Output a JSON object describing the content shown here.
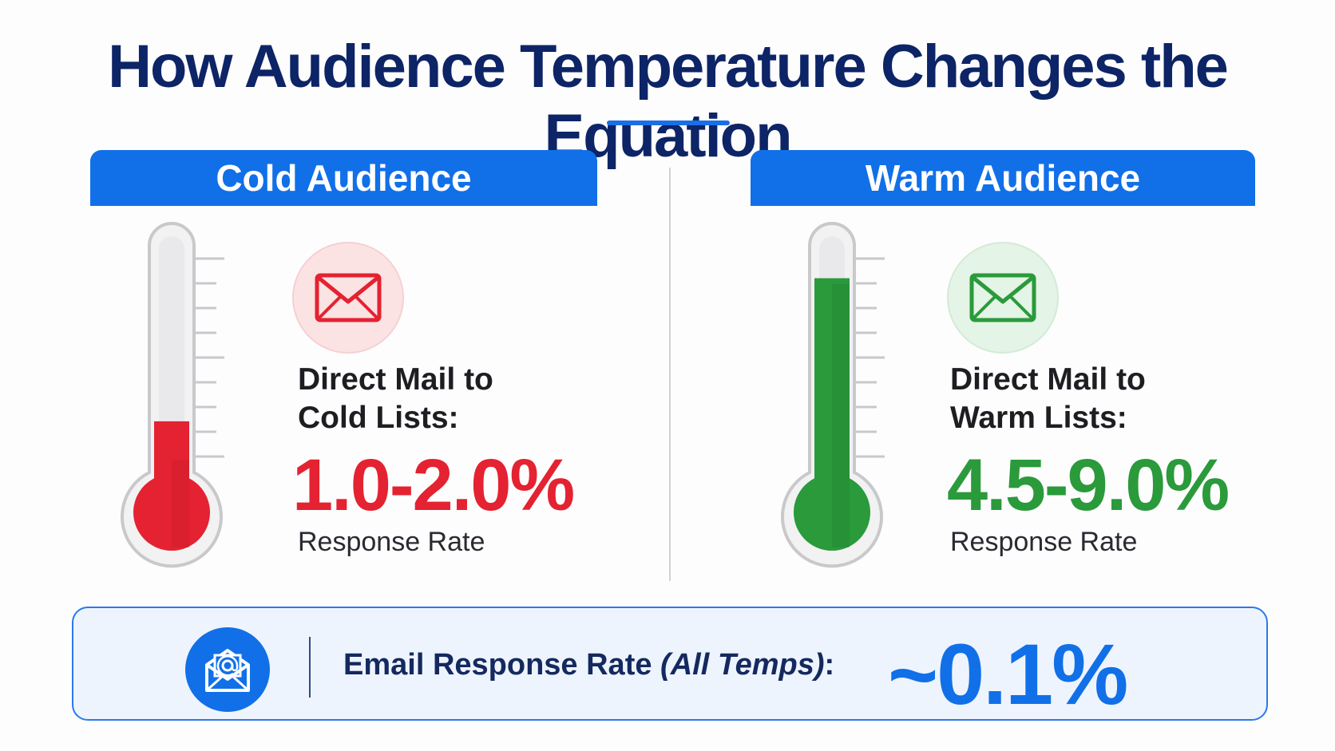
{
  "title": "How Audience Temperature Changes the Equation",
  "colors": {
    "title": "#0d2466",
    "accent_blue": "#1170e8",
    "cold_red": "#e42231",
    "warm_green": "#2a9a3b"
  },
  "cold": {
    "header": "Cold Audience",
    "icon": "envelope-icon",
    "label_line1": "Direct Mail to",
    "label_line2": "Cold Lists:",
    "rate": "1.0-2.0%",
    "sublabel": "Response Rate",
    "thermometer_level": 0.35
  },
  "warm": {
    "header": "Warm Audience",
    "icon": "envelope-icon",
    "label_line1": "Direct Mail to",
    "label_line2": "Warm Lists:",
    "rate": "4.5-9.0%",
    "sublabel": "Response Rate",
    "thermometer_level": 0.9
  },
  "email": {
    "icon": "email-at-icon",
    "label": "Email Response Rate ",
    "label_paren": "(All Temps)",
    "label_suffix": ":",
    "rate": "~0.1%"
  }
}
